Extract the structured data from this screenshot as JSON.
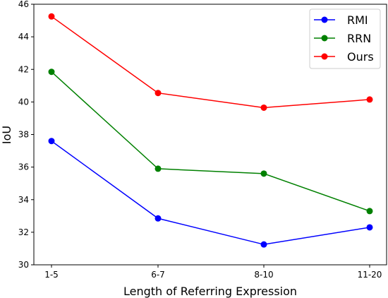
{
  "chart_data": {
    "type": "line",
    "title": "",
    "xlabel": "Length of Referring Expression",
    "ylabel": "IoU",
    "categories": [
      "1-5",
      "6-7",
      "8-10",
      "11-20"
    ],
    "ylim": [
      30,
      46
    ],
    "yticks": [
      30,
      32,
      34,
      36,
      38,
      40,
      42,
      44,
      46
    ],
    "grid": false,
    "legend_position": "top-right",
    "series": [
      {
        "name": "RMI",
        "color": "#0000ff",
        "values": [
          37.6,
          32.85,
          31.25,
          32.3
        ]
      },
      {
        "name": "RRN",
        "color": "#008000",
        "values": [
          41.85,
          35.9,
          35.6,
          33.3
        ]
      },
      {
        "name": "Ours",
        "color": "#ff0000",
        "values": [
          45.25,
          40.55,
          39.65,
          40.15
        ]
      }
    ]
  }
}
